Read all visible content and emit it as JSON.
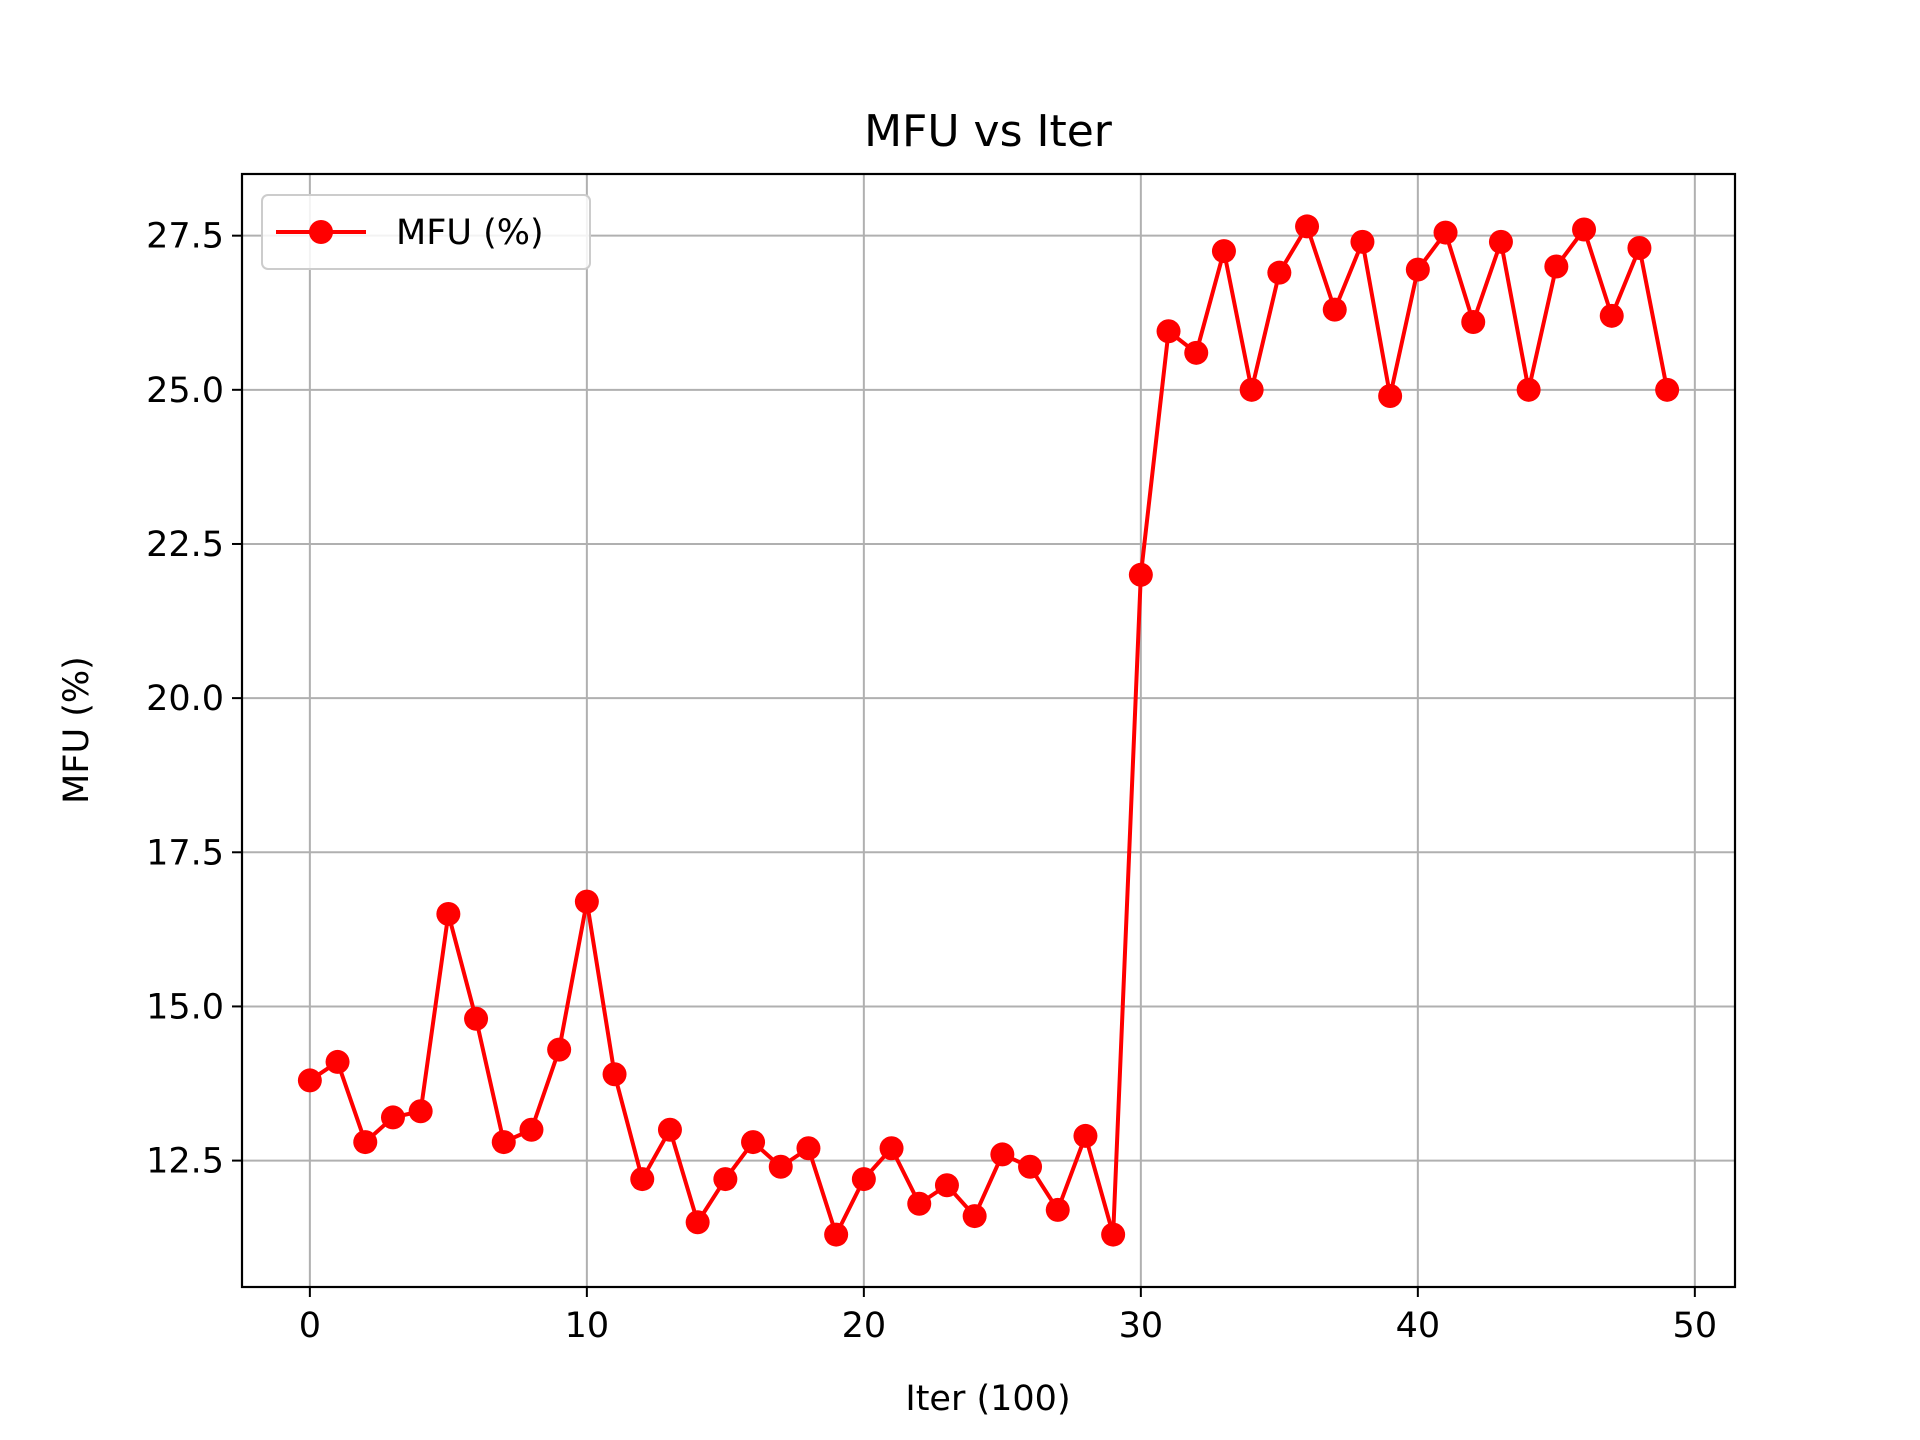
{
  "chart_data": {
    "type": "line",
    "title": "MFU vs Iter",
    "xlabel": "Iter (100)",
    "ylabel": "MFU (%)",
    "xlim": [
      -2.45,
      51.45
    ],
    "ylim": [
      10.45,
      28.5
    ],
    "xticks": [
      0,
      10,
      20,
      30,
      40,
      50
    ],
    "yticks": [
      12.5,
      15.0,
      17.5,
      20.0,
      22.5,
      25.0,
      27.5
    ],
    "xtick_labels": [
      "0",
      "10",
      "20",
      "30",
      "40",
      "50"
    ],
    "ytick_labels": [
      "12.5",
      "15.0",
      "17.5",
      "20.0",
      "22.5",
      "25.0",
      "27.5"
    ],
    "grid": true,
    "legend_position": "top-left",
    "series": [
      {
        "name": "MFU (%)",
        "color": "#ff0000",
        "marker": "circle",
        "x": [
          0,
          1,
          2,
          3,
          4,
          5,
          6,
          7,
          8,
          9,
          10,
          11,
          12,
          13,
          14,
          15,
          16,
          17,
          18,
          19,
          20,
          21,
          22,
          23,
          24,
          25,
          26,
          27,
          28,
          29,
          30,
          31,
          32,
          33,
          34,
          35,
          36,
          37,
          38,
          39,
          40,
          41,
          42,
          43,
          44,
          45,
          46,
          47,
          48,
          49
        ],
        "y": [
          13.8,
          14.1,
          12.8,
          13.2,
          13.3,
          16.5,
          14.8,
          12.8,
          13.0,
          14.3,
          16.7,
          13.9,
          12.2,
          13.0,
          11.5,
          12.2,
          12.8,
          12.4,
          12.7,
          11.3,
          12.2,
          12.7,
          11.8,
          12.1,
          11.6,
          12.6,
          12.4,
          11.7,
          12.9,
          11.3,
          22.0,
          25.95,
          25.6,
          27.25,
          25.0,
          26.9,
          27.65,
          26.3,
          27.4,
          24.9,
          26.95,
          27.55,
          26.1,
          27.4,
          25.0,
          27.0,
          27.6,
          26.2,
          27.3,
          25.0
        ]
      }
    ]
  }
}
